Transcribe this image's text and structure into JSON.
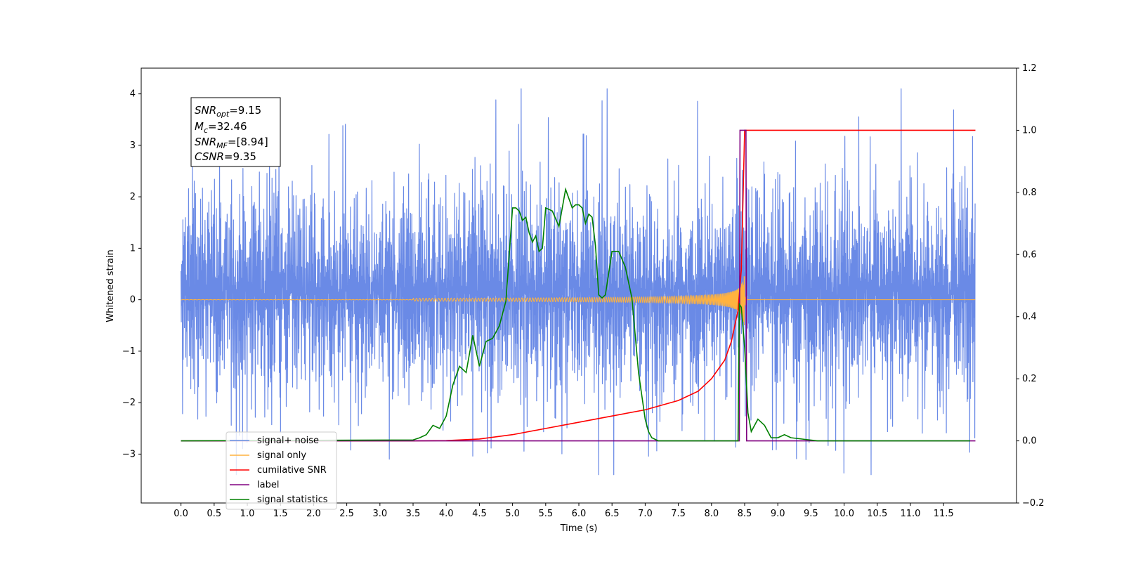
{
  "chart_data": {
    "type": "line",
    "title": "",
    "xlabel": "Time (s)",
    "ylabel": "Whitened strain",
    "y2label": "",
    "xlim": [
      -0.6,
      12.6
    ],
    "ylim": [
      -3.95,
      4.5
    ],
    "y2lim": [
      -0.2,
      1.2
    ],
    "x_ticks": [
      0.0,
      0.5,
      1.0,
      1.5,
      2.0,
      2.5,
      3.0,
      3.5,
      4.0,
      4.5,
      5.0,
      5.5,
      6.0,
      6.5,
      7.0,
      7.5,
      8.0,
      8.5,
      9.0,
      9.5,
      10.0,
      10.5,
      11.0,
      11.5
    ],
    "x_tick_labels": [
      "0.0",
      "0.5",
      "1.0",
      "1.5",
      "2.0",
      "2.5",
      "3.0",
      "3.5",
      "4.0",
      "4.5",
      "5.0",
      "5.5",
      "6.0",
      "6.5",
      "7.0",
      "7.5",
      "8.0",
      "8.5",
      "9.0",
      "9.5",
      "10.0",
      "10.5",
      "11.0",
      "11.5"
    ],
    "y_ticks": [
      -3,
      -2,
      -1,
      0,
      1,
      2,
      3,
      4
    ],
    "y_tick_labels": [
      "−3",
      "−2",
      "−1",
      "0",
      "1",
      "2",
      "3",
      "4"
    ],
    "y2_ticks": [
      -0.2,
      0.0,
      0.2,
      0.4,
      0.6,
      0.8,
      1.0,
      1.2
    ],
    "y2_tick_labels": [
      "−0.2",
      "0.0",
      "0.2",
      "0.4",
      "0.6",
      "0.8",
      "1.0",
      "1.2"
    ],
    "grid": false,
    "legend_position": "lower-left",
    "annotation": {
      "lines": [
        {
          "main": "SNR",
          "sub": "opt",
          "value": "=9.15"
        },
        {
          "main": "M",
          "sub": "c",
          "value": "=32.46"
        },
        {
          "main": "SNR",
          "sub": "MF",
          "value": "=[8.94]"
        },
        {
          "main": "CSNR",
          "sub": "",
          "value": "=9.35"
        }
      ]
    },
    "series": [
      {
        "name": "signal+ noise",
        "axis": "left",
        "color": "#6a8ae6",
        "noise_band": {
          "x_start": 0.0,
          "x_end": 11.98,
          "typical_min": -2.0,
          "typical_max": 2.3,
          "min": -3.4,
          "max": 4.1
        }
      },
      {
        "name": "signal only",
        "axis": "left",
        "color": "#ffb23f",
        "chirp": {
          "x_start": 0.0,
          "x_end": 11.98,
          "t_merger": 8.5,
          "peak_amplitude": 0.6,
          "ringdown_end": 8.55
        }
      },
      {
        "name": "cumilative SNR",
        "axis": "right",
        "color": "#ff0000",
        "x": [
          0.0,
          3.5,
          4.0,
          4.5,
          5.0,
          5.5,
          6.0,
          6.5,
          7.0,
          7.5,
          7.8,
          8.0,
          8.2,
          8.3,
          8.4,
          8.45,
          8.5,
          8.6,
          11.98
        ],
        "y": [
          0.0,
          0.0,
          0.001,
          0.006,
          0.02,
          0.04,
          0.06,
          0.08,
          0.1,
          0.13,
          0.16,
          0.2,
          0.26,
          0.32,
          0.42,
          0.55,
          1.0,
          1.0,
          1.0
        ]
      },
      {
        "name": "label",
        "axis": "right",
        "color": "#800080",
        "x": [
          0.0,
          8.42,
          8.43,
          8.52,
          8.53,
          11.98
        ],
        "y": [
          0.0,
          0.0,
          1.0,
          1.0,
          0.0,
          0.0
        ]
      },
      {
        "name": "signal statistics",
        "axis": "right",
        "color": "#008000",
        "x": [
          0.0,
          3.5,
          3.6,
          3.7,
          3.8,
          3.9,
          4.0,
          4.1,
          4.2,
          4.3,
          4.4,
          4.5,
          4.6,
          4.7,
          4.8,
          4.9,
          5.0,
          5.05,
          5.1,
          5.15,
          5.2,
          5.25,
          5.3,
          5.35,
          5.4,
          5.45,
          5.5,
          5.6,
          5.7,
          5.8,
          5.85,
          5.9,
          5.95,
          6.0,
          6.05,
          6.1,
          6.15,
          6.2,
          6.25,
          6.3,
          6.35,
          6.4,
          6.5,
          6.6,
          6.7,
          6.8,
          6.9,
          7.0,
          7.05,
          7.1,
          7.2,
          8.0,
          8.4,
          8.42,
          8.45,
          8.5,
          8.55,
          8.6,
          8.7,
          8.8,
          8.9,
          9.0,
          9.1,
          9.2,
          9.4,
          9.6,
          10.0,
          11.9
        ],
        "y": [
          0.0,
          0.003,
          0.01,
          0.02,
          0.05,
          0.04,
          0.08,
          0.18,
          0.24,
          0.22,
          0.34,
          0.24,
          0.32,
          0.33,
          0.37,
          0.45,
          0.75,
          0.75,
          0.74,
          0.71,
          0.72,
          0.67,
          0.64,
          0.66,
          0.61,
          0.62,
          0.75,
          0.74,
          0.69,
          0.81,
          0.78,
          0.75,
          0.76,
          0.76,
          0.75,
          0.7,
          0.73,
          0.72,
          0.63,
          0.47,
          0.46,
          0.47,
          0.61,
          0.61,
          0.56,
          0.46,
          0.22,
          0.07,
          0.03,
          0.01,
          0.0,
          0.0,
          0.0,
          0.44,
          0.43,
          0.3,
          0.09,
          0.03,
          0.07,
          0.05,
          0.01,
          0.01,
          0.02,
          0.01,
          0.005,
          0.0,
          0.0,
          0.0
        ]
      }
    ]
  }
}
